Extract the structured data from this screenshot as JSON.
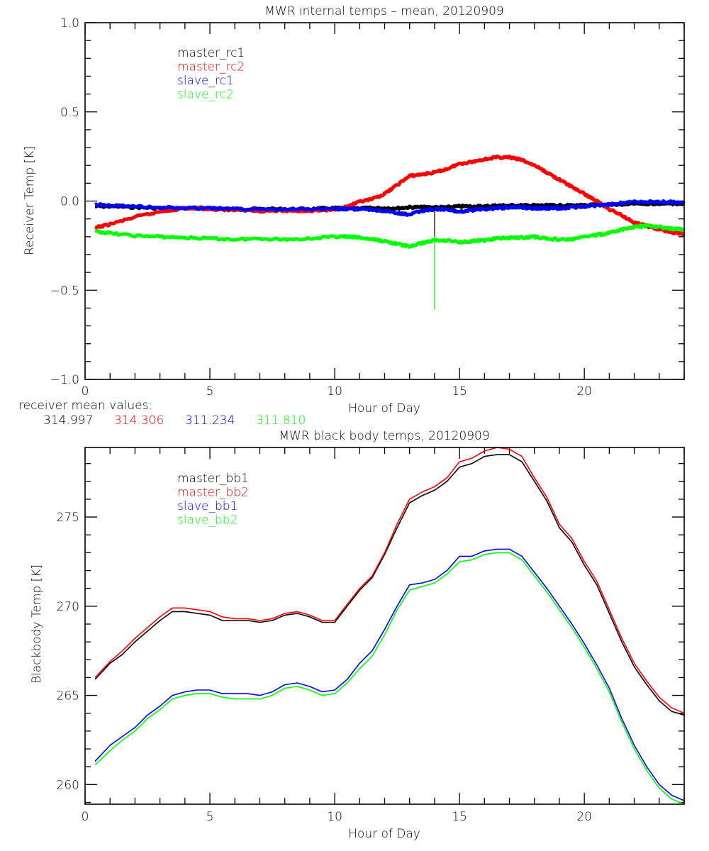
{
  "chart_data": [
    {
      "type": "line",
      "title": "MWR internal temps – mean, 20120909",
      "xlabel": "Hour of Day",
      "ylabel": "Receiver Temp [K]",
      "xlim": [
        0,
        24
      ],
      "ylim": [
        -1.0,
        1.0
      ],
      "xticks": [
        "0",
        "5",
        "10",
        "15",
        "20"
      ],
      "xtick_values": [
        0,
        5,
        10,
        15,
        20
      ],
      "yticks": [
        "−1.0",
        "−0.5",
        "0.0",
        "0.5",
        "1.0"
      ],
      "ytick_values": [
        -1.0,
        -0.5,
        0.0,
        0.5,
        1.0
      ],
      "legend_placement": "top-left",
      "grid": false,
      "x": [
        0.4,
        1,
        2,
        3,
        4,
        5,
        6,
        7,
        8,
        9,
        10,
        10.5,
        11,
        11.5,
        12,
        12.5,
        13,
        13.5,
        14,
        14.5,
        15,
        15.5,
        16,
        16.5,
        17,
        17.5,
        18,
        18.5,
        19,
        19.5,
        20,
        20.5,
        21,
        21.5,
        22,
        22.5,
        23,
        23.5,
        24
      ],
      "series": [
        {
          "name": "master_rc1",
          "color": "#000000",
          "values": [
            -0.03,
            -0.03,
            -0.035,
            -0.04,
            -0.04,
            -0.04,
            -0.045,
            -0.045,
            -0.045,
            -0.045,
            -0.04,
            -0.04,
            -0.04,
            -0.04,
            -0.04,
            -0.04,
            -0.035,
            -0.035,
            -0.035,
            -0.035,
            -0.03,
            -0.03,
            -0.03,
            -0.025,
            -0.025,
            -0.025,
            -0.025,
            -0.025,
            -0.025,
            -0.025,
            -0.025,
            -0.02,
            -0.02,
            -0.02,
            -0.015,
            -0.015,
            -0.015,
            -0.015,
            -0.015
          ]
        },
        {
          "name": "master_rc2",
          "color": "#ff0000",
          "values": [
            -0.15,
            -0.13,
            -0.09,
            -0.06,
            -0.04,
            -0.045,
            -0.05,
            -0.055,
            -0.055,
            -0.055,
            -0.05,
            -0.03,
            -0.005,
            0.01,
            0.04,
            0.09,
            0.14,
            0.15,
            0.16,
            0.18,
            0.21,
            0.22,
            0.235,
            0.245,
            0.245,
            0.23,
            0.2,
            0.16,
            0.12,
            0.08,
            0.04,
            0.0,
            -0.045,
            -0.08,
            -0.12,
            -0.14,
            -0.16,
            -0.175,
            -0.185
          ]
        },
        {
          "name": "slave_rc1",
          "color": "#0000ff",
          "values": [
            -0.02,
            -0.025,
            -0.03,
            -0.035,
            -0.04,
            -0.04,
            -0.045,
            -0.045,
            -0.045,
            -0.045,
            -0.045,
            -0.045,
            -0.045,
            -0.05,
            -0.055,
            -0.07,
            -0.075,
            -0.055,
            -0.045,
            -0.05,
            -0.06,
            -0.05,
            -0.045,
            -0.04,
            -0.035,
            -0.035,
            -0.04,
            -0.04,
            -0.04,
            -0.035,
            -0.03,
            -0.025,
            -0.02,
            -0.01,
            -0.005,
            -0.005,
            -0.005,
            -0.005,
            -0.005
          ]
        },
        {
          "name": "slave_rc2",
          "color": "#00ff00",
          "values": [
            -0.17,
            -0.18,
            -0.195,
            -0.2,
            -0.205,
            -0.21,
            -0.215,
            -0.21,
            -0.215,
            -0.21,
            -0.2,
            -0.2,
            -0.205,
            -0.215,
            -0.225,
            -0.24,
            -0.255,
            -0.235,
            -0.22,
            -0.22,
            -0.23,
            -0.225,
            -0.22,
            -0.21,
            -0.205,
            -0.205,
            -0.2,
            -0.21,
            -0.215,
            -0.215,
            -0.2,
            -0.19,
            -0.18,
            -0.16,
            -0.145,
            -0.14,
            -0.145,
            -0.155,
            -0.16
          ]
        }
      ],
      "spikes": [
        {
          "series": "master_rc1",
          "x": 14.0,
          "from": -0.035,
          "to": -0.2
        },
        {
          "series": "slave_rc2",
          "x": 14.0,
          "from": -0.2,
          "to": -0.61
        }
      ]
    },
    {
      "type": "line",
      "title": "MWR black body temps, 20120909",
      "xlabel": "Hour of Day",
      "ylabel": "Blackbody Temp [K]",
      "xlim": [
        0,
        24
      ],
      "ylim": [
        258.9,
        278.9
      ],
      "xticks": [
        "0",
        "5",
        "10",
        "15",
        "20"
      ],
      "xtick_values": [
        0,
        5,
        10,
        15,
        20
      ],
      "yticks": [
        "260",
        "265",
        "270",
        "275"
      ],
      "ytick_values": [
        260,
        265,
        270,
        275
      ],
      "legend_placement": "top-left",
      "grid": false,
      "x": [
        0.4,
        1,
        1.5,
        2,
        2.5,
        3,
        3.5,
        4,
        4.5,
        5,
        5.5,
        6,
        6.5,
        7,
        7.5,
        8,
        8.5,
        9,
        9.5,
        10,
        10.5,
        11,
        11.5,
        12,
        12.5,
        13,
        13.5,
        14,
        14.5,
        15,
        15.5,
        16,
        16.5,
        17,
        17.5,
        18,
        18.5,
        19,
        19.5,
        20,
        20.5,
        21,
        21.5,
        22,
        22.5,
        23,
        23.5,
        24
      ],
      "series": [
        {
          "name": "master_bb1",
          "color": "#000000",
          "values": [
            265.9,
            266.8,
            267.3,
            268.0,
            268.6,
            269.2,
            269.7,
            269.7,
            269.6,
            269.5,
            269.2,
            269.2,
            269.2,
            269.1,
            269.2,
            269.5,
            269.6,
            269.4,
            269.1,
            269.1,
            270.0,
            270.9,
            271.6,
            272.9,
            274.4,
            275.8,
            276.2,
            276.5,
            277.0,
            277.8,
            278.0,
            278.4,
            278.5,
            278.5,
            278.1,
            277.0,
            275.9,
            274.4,
            273.6,
            272.3,
            271.2,
            269.6,
            268.0,
            266.6,
            265.6,
            264.7,
            264.1,
            263.9
          ]
        },
        {
          "name": "master_bb2",
          "color": "#ff0000",
          "values": [
            266.0,
            266.9,
            267.5,
            268.2,
            268.8,
            269.4,
            269.9,
            269.9,
            269.8,
            269.7,
            269.4,
            269.3,
            269.3,
            269.2,
            269.3,
            269.6,
            269.7,
            269.5,
            269.2,
            269.2,
            270.1,
            271.0,
            271.7,
            273.0,
            274.6,
            276.0,
            276.4,
            276.7,
            277.2,
            278.1,
            278.3,
            278.7,
            278.9,
            278.8,
            278.4,
            277.2,
            276.1,
            274.6,
            273.8,
            272.5,
            271.4,
            269.8,
            268.2,
            266.8,
            265.8,
            264.9,
            264.3,
            264.0
          ]
        },
        {
          "name": "slave_bb1",
          "color": "#0000ff",
          "values": [
            261.3,
            262.2,
            262.7,
            263.2,
            263.9,
            264.4,
            265.0,
            265.2,
            265.3,
            265.3,
            265.1,
            265.1,
            265.1,
            265.0,
            265.2,
            265.6,
            265.7,
            265.5,
            265.2,
            265.3,
            265.9,
            266.8,
            267.5,
            268.7,
            270.0,
            271.2,
            271.3,
            271.5,
            272.0,
            272.8,
            272.8,
            273.1,
            273.2,
            273.2,
            272.8,
            271.9,
            271.0,
            270.0,
            269.0,
            267.9,
            266.7,
            265.4,
            263.7,
            262.2,
            261.0,
            260.0,
            259.4,
            259.1
          ]
        },
        {
          "name": "slave_bb2",
          "color": "#00ff00",
          "values": [
            261.1,
            261.9,
            262.5,
            263.0,
            263.7,
            264.2,
            264.8,
            265.0,
            265.1,
            265.1,
            264.9,
            264.8,
            264.8,
            264.8,
            265.0,
            265.4,
            265.5,
            265.3,
            265.0,
            265.1,
            265.7,
            266.5,
            267.2,
            268.4,
            269.8,
            270.9,
            271.1,
            271.3,
            271.8,
            272.5,
            272.6,
            272.9,
            273.0,
            273.0,
            272.6,
            271.7,
            270.8,
            269.8,
            268.8,
            267.7,
            266.5,
            265.2,
            263.5,
            262.0,
            260.8,
            259.8,
            259.2,
            258.9
          ]
        }
      ]
    }
  ],
  "legends": {
    "top": [
      "master_rc1",
      "master_rc2",
      "slave_rc1",
      "slave_rc2"
    ],
    "bottom": [
      "master_bb1",
      "master_bb2",
      "slave_bb1",
      "slave_bb2"
    ]
  },
  "colors": [
    "#000000",
    "#ff0000",
    "#0000ff",
    "#00ff00"
  ],
  "receiver_means": {
    "label": "receiver mean values:",
    "values": [
      "314.997",
      "314.306",
      "311.234",
      "311.810"
    ]
  }
}
